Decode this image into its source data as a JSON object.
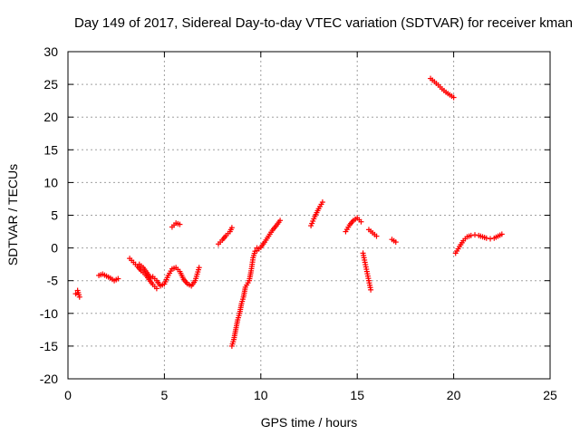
{
  "chart_data": {
    "type": "scatter",
    "title": "Day 149 of 2017, Sidereal Day-to-day VTEC variation (SDTVAR) for receiver kman",
    "xlabel": "GPS time / hours",
    "ylabel": "SDTVAR / TECUs",
    "xlim": [
      0,
      25
    ],
    "ylim": [
      -20,
      30
    ],
    "xticks": [
      "0",
      "5",
      "10",
      "15",
      "20",
      "25"
    ],
    "yticks": [
      "-20",
      "-15",
      "-10",
      "-5",
      "0",
      "5",
      "10",
      "15",
      "20",
      "25",
      "30"
    ],
    "grid": true,
    "marker": "+",
    "color": "#ff0000",
    "segments": [
      {
        "x": [
          0.4,
          0.5,
          0.6
        ],
        "y": [
          -7,
          -6.5,
          -7.5
        ]
      },
      {
        "x": [
          1.6,
          1.8,
          2.0,
          2.2,
          2.4,
          2.6
        ],
        "y": [
          -4.2,
          -4.0,
          -4.3,
          -4.6,
          -5.0,
          -4.7
        ]
      },
      {
        "x": [
          3.2,
          3.4,
          3.6,
          3.8,
          4.0,
          4.2,
          4.4,
          4.6
        ],
        "y": [
          -1.6,
          -2.2,
          -2.8,
          -3.5,
          -4.0,
          -4.8,
          -5.6,
          -6.2
        ]
      },
      {
        "x": [
          3.7,
          3.9,
          4.1,
          4.3
        ],
        "y": [
          -2.5,
          -3.0,
          -3.8,
          -4.6
        ]
      },
      {
        "x": [
          4.4,
          4.6,
          4.8,
          5.0,
          5.2,
          5.4,
          5.6,
          5.8,
          6.0,
          6.2,
          6.4,
          6.6,
          6.8
        ],
        "y": [
          -4.4,
          -5.0,
          -5.8,
          -5.5,
          -4.2,
          -3.2,
          -3.0,
          -3.6,
          -4.8,
          -5.5,
          -5.8,
          -5.0,
          -3.0
        ]
      },
      {
        "x": [
          5.4,
          5.6,
          5.8
        ],
        "y": [
          3.2,
          3.8,
          3.6
        ]
      },
      {
        "x": [
          7.8,
          8.0,
          8.2,
          8.4,
          8.5
        ],
        "y": [
          0.6,
          1.2,
          1.9,
          2.5,
          3.1
        ]
      },
      {
        "x": [
          8.5,
          8.6,
          8.7,
          8.8,
          8.9,
          9.0,
          9.1,
          9.2,
          9.4,
          9.5,
          9.6,
          9.7,
          9.8
        ],
        "y": [
          -15,
          -14,
          -12.5,
          -11,
          -10,
          -8.5,
          -7.5,
          -6,
          -5,
          -3.5,
          -1.5,
          -0.5,
          0
        ]
      },
      {
        "x": [
          9.8,
          10.0,
          10.2,
          10.4,
          10.6,
          10.8,
          11.0
        ],
        "y": [
          -0.4,
          0.1,
          0.9,
          1.8,
          2.7,
          3.4,
          4.2
        ]
      },
      {
        "x": [
          12.6,
          12.8,
          13.0,
          13.2
        ],
        "y": [
          3.4,
          4.8,
          6.0,
          7.0
        ]
      },
      {
        "x": [
          14.4,
          14.6,
          14.8,
          15.0,
          15.2
        ],
        "y": [
          2.5,
          3.5,
          4.2,
          4.6,
          4.0
        ]
      },
      {
        "x": [
          15.3,
          15.4,
          15.5,
          15.6,
          15.7
        ],
        "y": [
          -0.8,
          -2.2,
          -3.6,
          -5.0,
          -6.4
        ]
      },
      {
        "x": [
          15.6,
          15.8,
          16.0
        ],
        "y": [
          2.8,
          2.3,
          1.8
        ]
      },
      {
        "x": [
          16.8,
          17.0
        ],
        "y": [
          1.3,
          0.9
        ]
      },
      {
        "x": [
          18.8,
          19.0,
          19.2,
          19.4,
          19.6,
          19.8,
          20.0
        ],
        "y": [
          25.9,
          25.4,
          24.9,
          24.3,
          23.8,
          23.4,
          23.0
        ]
      },
      {
        "x": [
          20.1,
          20.3,
          20.5,
          20.7,
          20.9,
          21.1,
          21.3,
          21.5,
          21.7,
          21.9,
          22.1,
          22.3,
          22.5
        ],
        "y": [
          -0.8,
          0.2,
          1.1,
          1.7,
          1.9,
          2.0,
          1.9,
          1.7,
          1.5,
          1.4,
          1.5,
          1.8,
          2.1
        ]
      }
    ]
  }
}
